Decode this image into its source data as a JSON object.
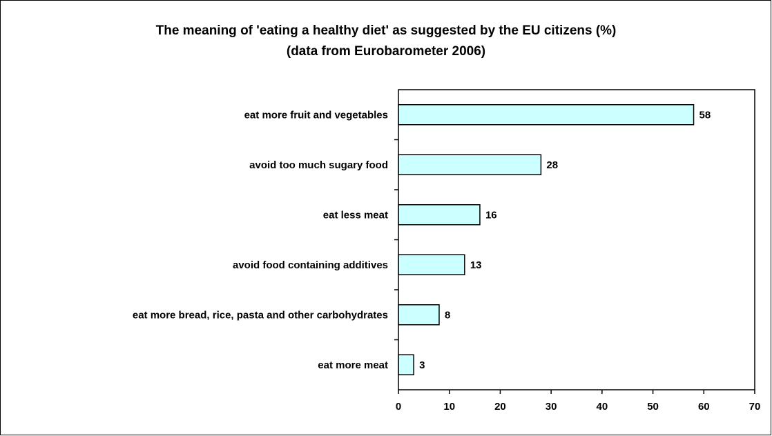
{
  "chart_data": {
    "type": "bar",
    "orientation": "horizontal",
    "title": "The meaning of 'eating a healthy diet' as suggested by the EU citizens (%)",
    "subtitle": "(data from Eurobarometer 2006)",
    "categories": [
      "eat more fruit and vegetables",
      "avoid too much sugary food",
      "eat less meat",
      "avoid food containing additives",
      "eat more bread, rice, pasta and other carbohydrates",
      "eat more meat"
    ],
    "values": [
      58,
      28,
      16,
      13,
      8,
      3
    ],
    "xlim": [
      0,
      70
    ],
    "xticks": [
      "0",
      "10",
      "20",
      "30",
      "40",
      "50",
      "60",
      "70"
    ],
    "data_labels": [
      "58",
      "28",
      "16",
      "13",
      "8",
      "3"
    ],
    "bar_color": "#ccffff",
    "grid": false,
    "legend": false
  }
}
